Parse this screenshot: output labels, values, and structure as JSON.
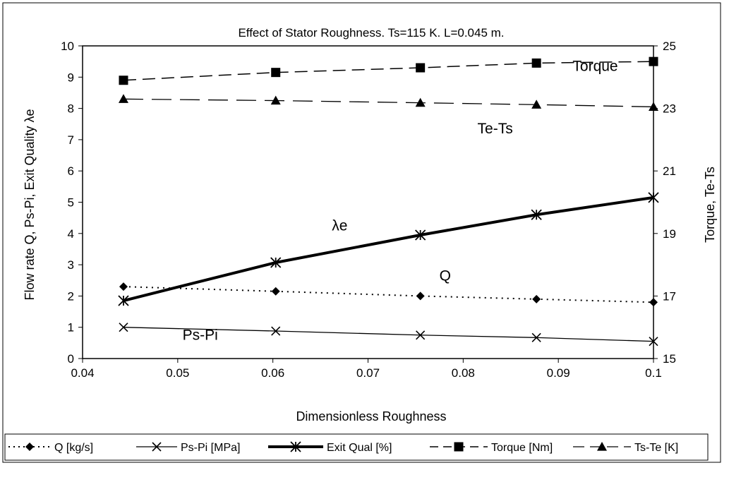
{
  "chart_data": {
    "type": "line",
    "title": "Effect of Stator Roughness. Ts=115 K. L=0.045 m.",
    "xlabel": "Dimensionless Roughness",
    "ylabel_left": "Flow rate Q, Ps-Pi, Exit Quality λe",
    "ylabel_right": "Torque, Te-Ts",
    "xlim": [
      0.04,
      0.1
    ],
    "ylim_left": [
      0,
      10
    ],
    "ylim_right": [
      15,
      25
    ],
    "x_ticks": [
      "0.04",
      "0.05",
      "0.06",
      "0.07",
      "0.08",
      "0.09",
      "0.1"
    ],
    "y_left_ticks": [
      "0",
      "1",
      "2",
      "3",
      "4",
      "5",
      "6",
      "7",
      "8",
      "9",
      "10"
    ],
    "y_right_ticks": [
      "15",
      "17",
      "19",
      "21",
      "23",
      "25"
    ],
    "grid": false,
    "legend_position": "bottom",
    "x": [
      0.0443,
      0.0603,
      0.0755,
      0.0877,
      0.1
    ],
    "series": [
      {
        "name": "Q [kg/s]",
        "axis": "left",
        "marker": "diamond",
        "line": "dotted",
        "width": 2,
        "values": [
          2.3,
          2.15,
          2.0,
          1.9,
          1.8
        ]
      },
      {
        "name": "Ps-Pi [MPa]",
        "axis": "left",
        "marker": "x",
        "line": "solid",
        "width": 1.3,
        "values": [
          1.0,
          0.88,
          0.75,
          0.67,
          0.55
        ]
      },
      {
        "name": "Exit Qual [%]",
        "axis": "left",
        "marker": "asterisk",
        "line": "solid",
        "width": 4,
        "values": [
          1.85,
          3.07,
          3.95,
          4.6,
          5.15
        ]
      },
      {
        "name": "Torque [Nm]",
        "axis": "right",
        "marker": "square",
        "line": "dashed",
        "width": 1.5,
        "values": [
          23.9,
          24.15,
          24.3,
          24.45,
          24.5
        ]
      },
      {
        "name": "Ts-Te [K]",
        "axis": "right",
        "marker": "triangle",
        "line": "longdash",
        "width": 1.3,
        "values": [
          23.3,
          23.25,
          23.18,
          23.12,
          23.05
        ]
      }
    ],
    "annotations": [
      {
        "text": "Torque",
        "x": 0.0915,
        "y_right": 24.2
      },
      {
        "text": "Te-Ts",
        "x": 0.0815,
        "y_right": 22.2
      },
      {
        "text": "λe",
        "x": 0.0662,
        "y_left": 4.1
      },
      {
        "text": "Q",
        "x": 0.0775,
        "y_left": 2.5
      },
      {
        "text": "Ps-Pi",
        "x": 0.0505,
        "y_left": 0.6
      }
    ]
  }
}
